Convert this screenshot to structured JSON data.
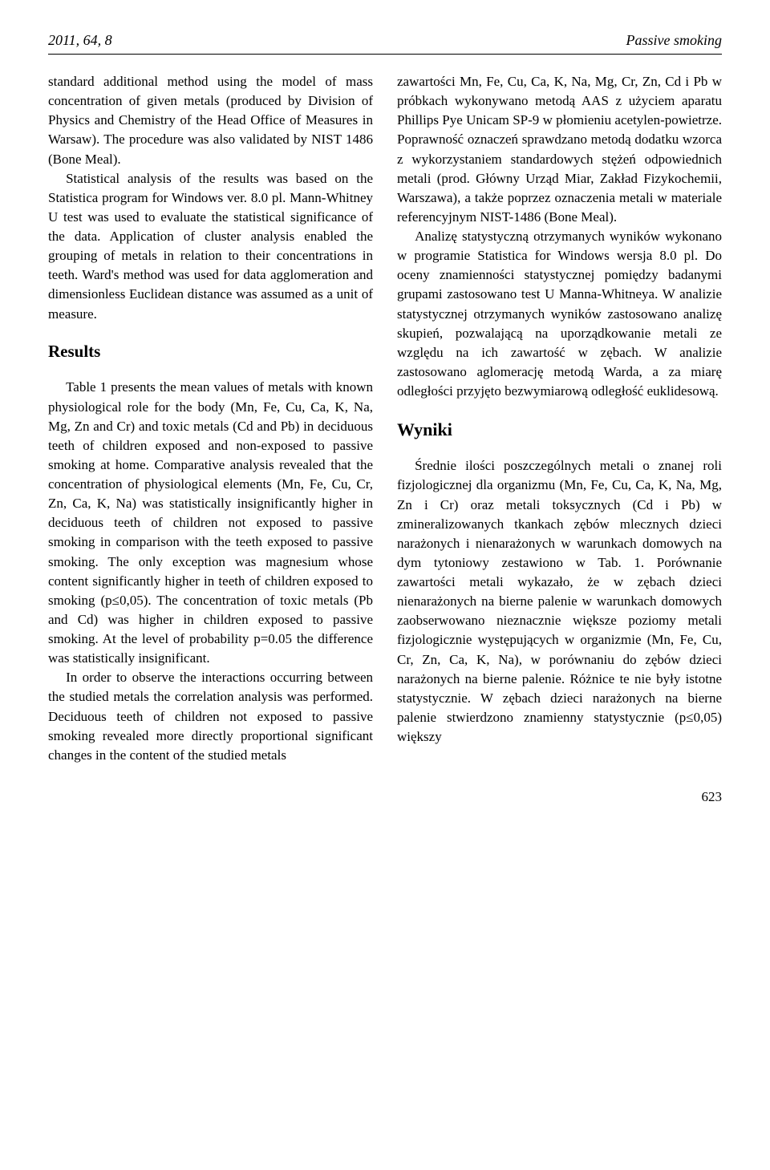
{
  "header": {
    "left": "2011, 64, 8",
    "right": "Passive smoking"
  },
  "leftColumn": {
    "para1": "standard additional method using the model of mass concentration of given metals (produced by Division of Physics and Chemistry of the Head Office of Measures in Warsaw). The procedure was also validated by NIST 1486 (Bone Meal).",
    "para2": "Statistical analysis of the results was based on the Statistica program for Windows ver. 8.0 pl. Mann-Whitney U test was used to evaluate the statistical significance of the data. Application of cluster analysis enabled the grouping of metals in relation to their concentrations in teeth. Ward's method was used for data agglomeration and dimensionless Euclidean distance was assumed as a unit of measure.",
    "resultsHeading": "Results",
    "para3": "Table 1 presents the mean values of metals with known physiological role for the body (Mn, Fe, Cu, Ca, K, Na, Mg, Zn and Cr) and toxic metals (Cd and Pb) in deciduous teeth of children exposed and non-exposed to passive smoking at home. Comparative analysis revealed that the concentration of physiological elements (Mn, Fe, Cu, Cr, Zn, Ca, K, Na) was statistically insignificantly higher in deciduous teeth of children not exposed to passive smoking in comparison with the teeth exposed to passive smoking. The only exception was magnesium whose content significantly higher in teeth of children exposed to smoking (p≤0,05). The concentration of toxic metals (Pb and Cd) was higher in children exposed to passive smoking. At the level of probability p=0.05 the difference was statistically insignificant.",
    "para4": "In order to observe the interactions occurring between the studied metals the correlation analysis was performed. Deciduous teeth of children not exposed to passive smoking revealed more directly proportional significant changes in the content of the studied metals"
  },
  "rightColumn": {
    "para1": "zawartości Mn, Fe, Cu, Ca, K, Na, Mg, Cr, Zn, Cd i Pb w próbkach wykonywano metodą AAS z użyciem aparatu Phillips Pye Unicam SP-9 w płomieniu acetylen-powietrze. Poprawność oznaczeń sprawdzano metodą dodatku wzorca z wykorzystaniem standardowych stężeń odpowiednich metali (prod. Główny Urząd Miar, Zakład Fizykochemii, Warszawa), a także poprzez oznaczenia metali w materiale referencyjnym NIST-1486 (Bone Meal).",
    "para2": "Analizę statystyczną otrzymanych wyników wykonano w programie Statistica for Windows wersja 8.0 pl. Do oceny znamienności statystycznej pomiędzy badanymi grupami zastosowano test U Manna-Whitneya. W analizie statystycznej otrzymanych wyników zastosowano analizę skupień, pozwalającą na uporządkowanie metali ze względu na ich zawartość w zębach. W analizie zastosowano aglomerację metodą Warda, a za miarę odległości przyjęto bezwymiarową odległość euklidesową.",
    "wynikiHeading": "Wyniki",
    "para3": "Średnie ilości poszczególnych metali o znanej roli fizjologicznej dla organizmu (Mn, Fe, Cu, Ca, K, Na, Mg, Zn i Cr) oraz metali toksycznych (Cd i Pb) w zmineralizowanych tkankach zębów mlecznych dzieci narażonych i nienarażonych w warunkach domowych na dym tytoniowy zestawiono w Tab. 1. Porównanie zawartości metali wykazało, że w zębach dzieci nienarażonych na bierne palenie w warunkach domowych zaobserwowano nieznacznie większe poziomy metali fizjologicznie występujących w organizmie (Mn, Fe, Cu, Cr, Zn, Ca, K, Na), w porównaniu do zębów dzieci narażonych na bierne palenie. Różnice te nie były istotne statystycznie. W zębach dzieci narażonych na bierne palenie stwierdzono znamienny statystycznie (p≤0,05) większy"
  },
  "pageNumber": "623"
}
